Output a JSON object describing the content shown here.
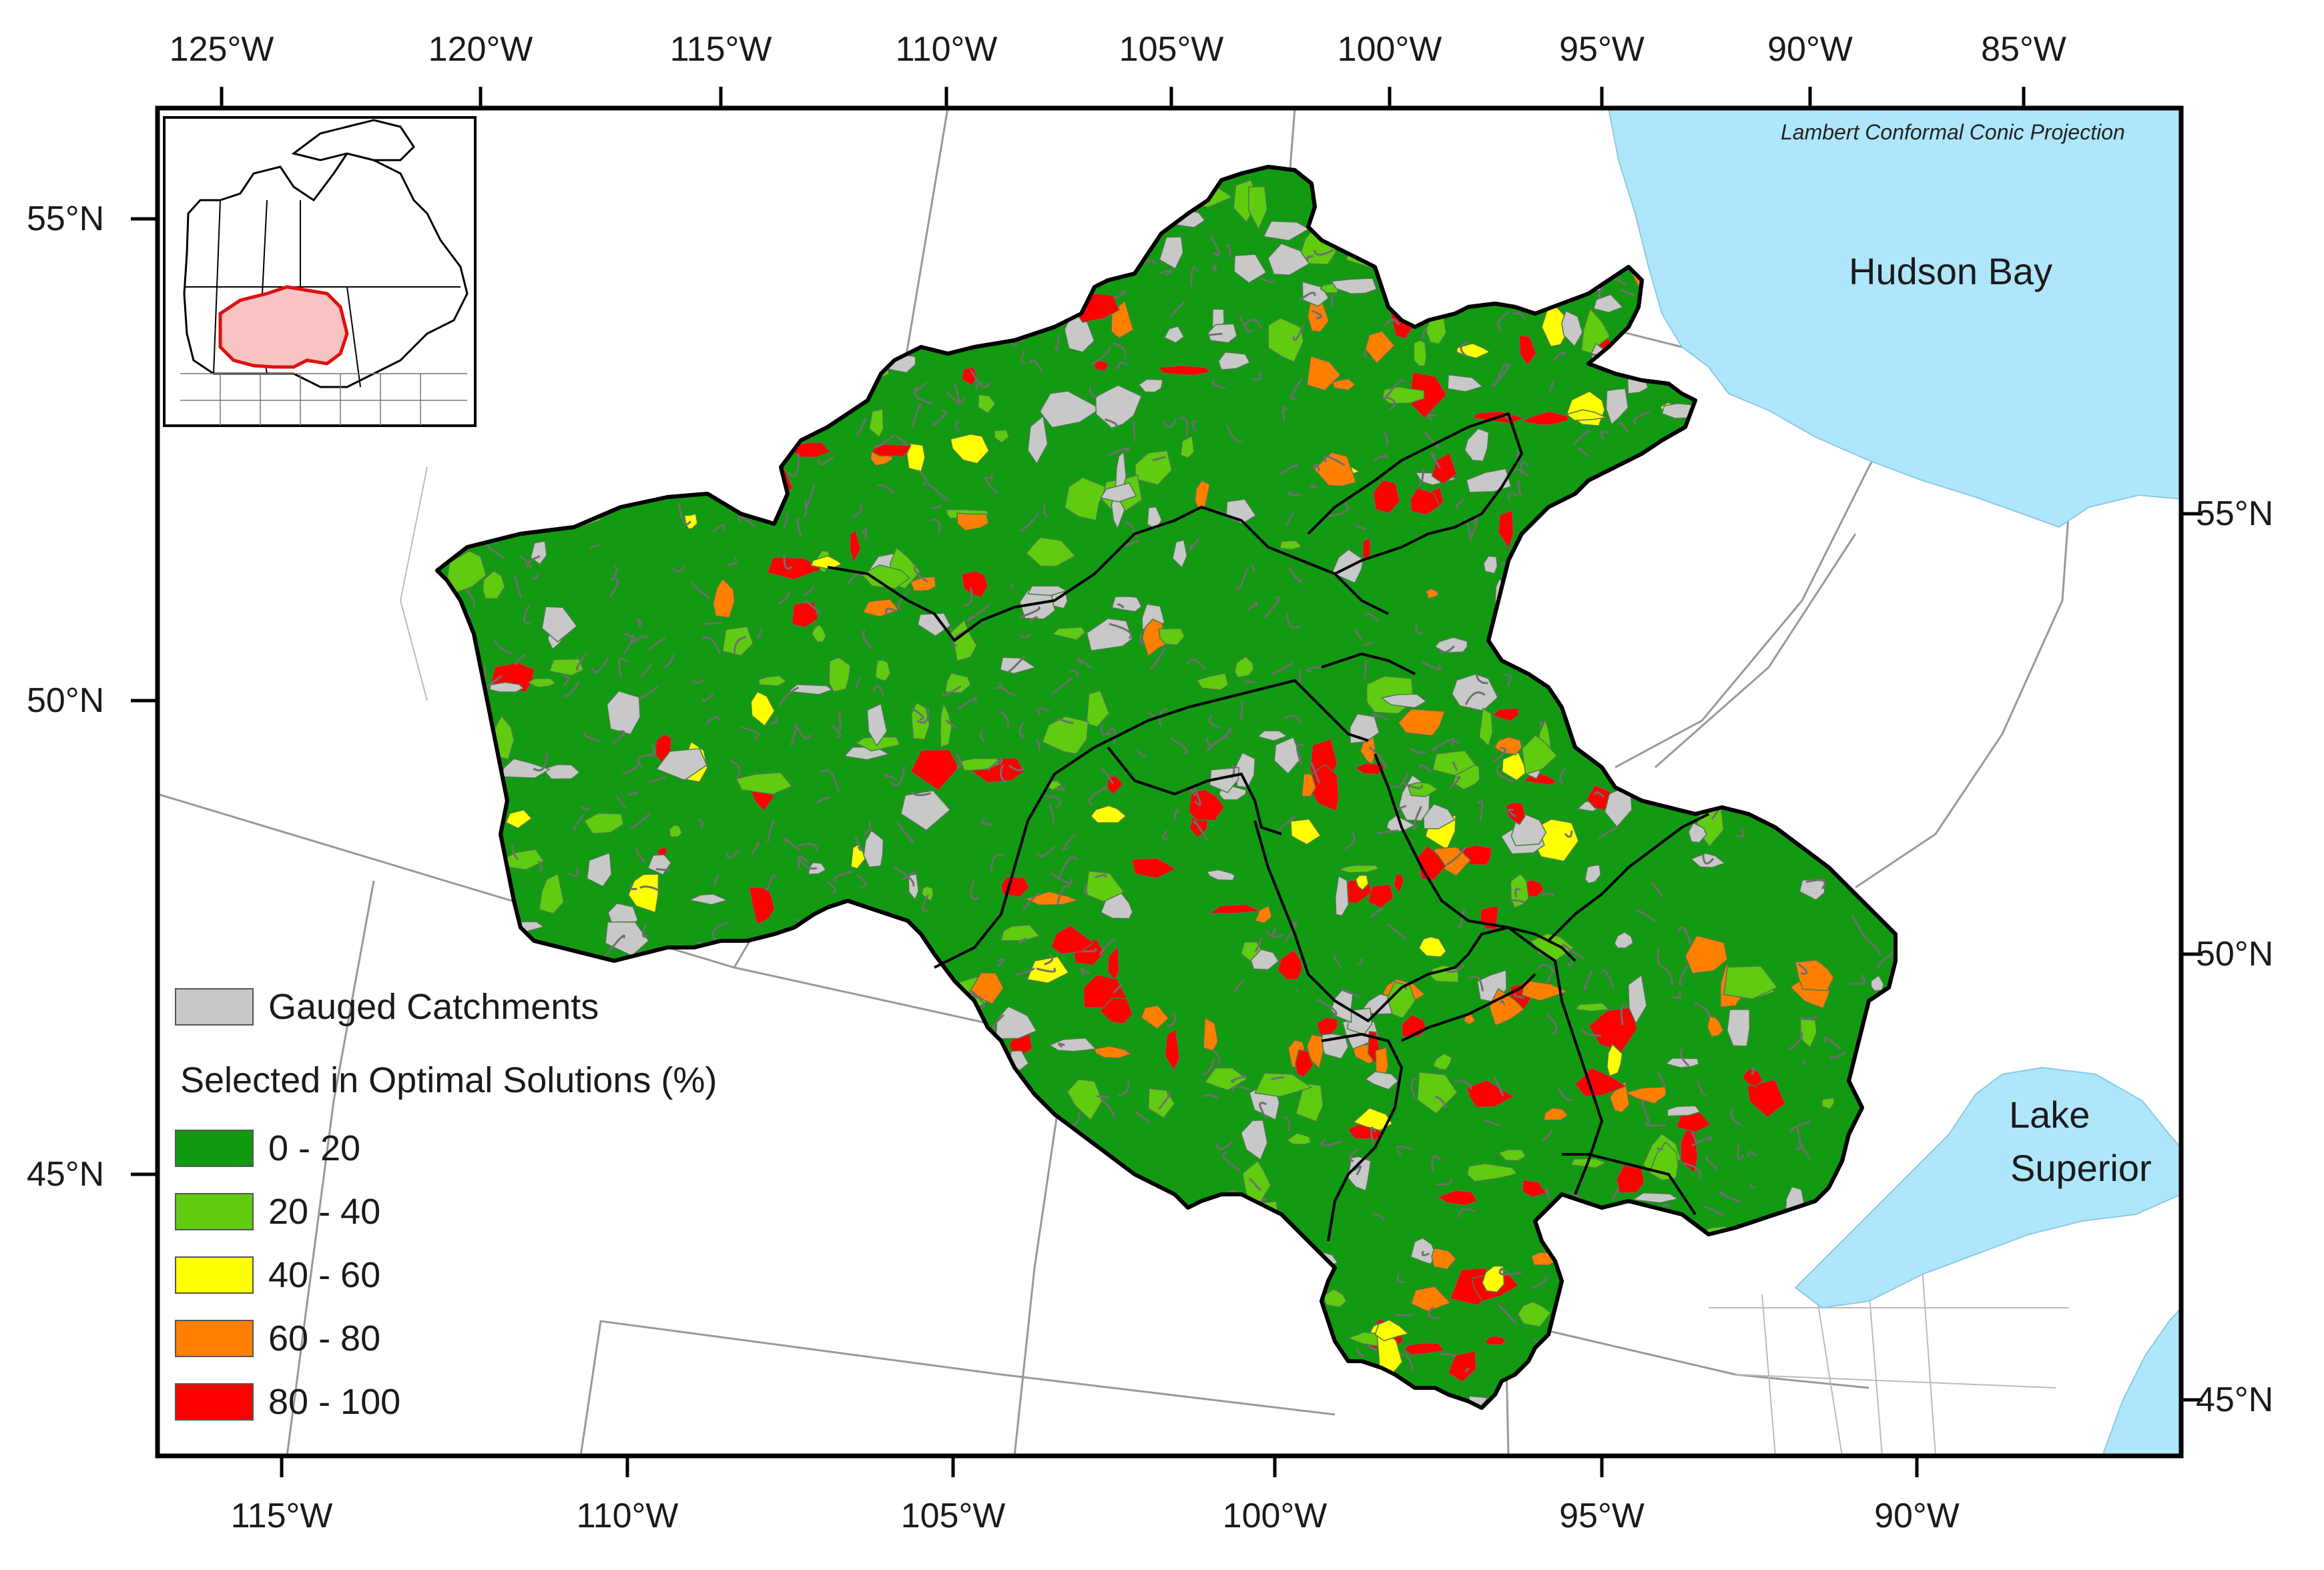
{
  "axes": {
    "top_lon_labels": [
      "125°W",
      "120°W",
      "115°W",
      "110°W",
      "105°W",
      "100°W",
      "95°W",
      "90°W",
      "85°W"
    ],
    "bottom_lon_labels": [
      "115°W",
      "110°W",
      "105°W",
      "100°W",
      "95°W",
      "90°W"
    ],
    "left_lat_labels": [
      "55°N",
      "50°N",
      "45°N"
    ],
    "right_lat_labels": [
      "55°N",
      "50°N",
      "45°N"
    ]
  },
  "projection_note": "Lambert Conformal Conic Projection",
  "water_labels": {
    "hudson_bay": "Hudson Bay",
    "lake_superior_line1": "Lake",
    "lake_superior_line2": "Superior"
  },
  "legend": {
    "gauged_label": "Gauged Catchments",
    "gauged_color": "#c8c8c8",
    "title": "Selected in Optimal Solutions (%)",
    "classes": [
      {
        "label": "0 - 20",
        "color": "#0f9a0f"
      },
      {
        "label": "20 - 40",
        "color": "#5fcc10"
      },
      {
        "label": "40 - 60",
        "color": "#ffff00"
      },
      {
        "label": "60 - 80",
        "color": "#ff8000"
      },
      {
        "label": "80 - 100",
        "color": "#ff0000"
      }
    ]
  },
  "colors": {
    "water": "#aee6fb",
    "basin_base": "#129a12",
    "boundary": "#999999"
  }
}
